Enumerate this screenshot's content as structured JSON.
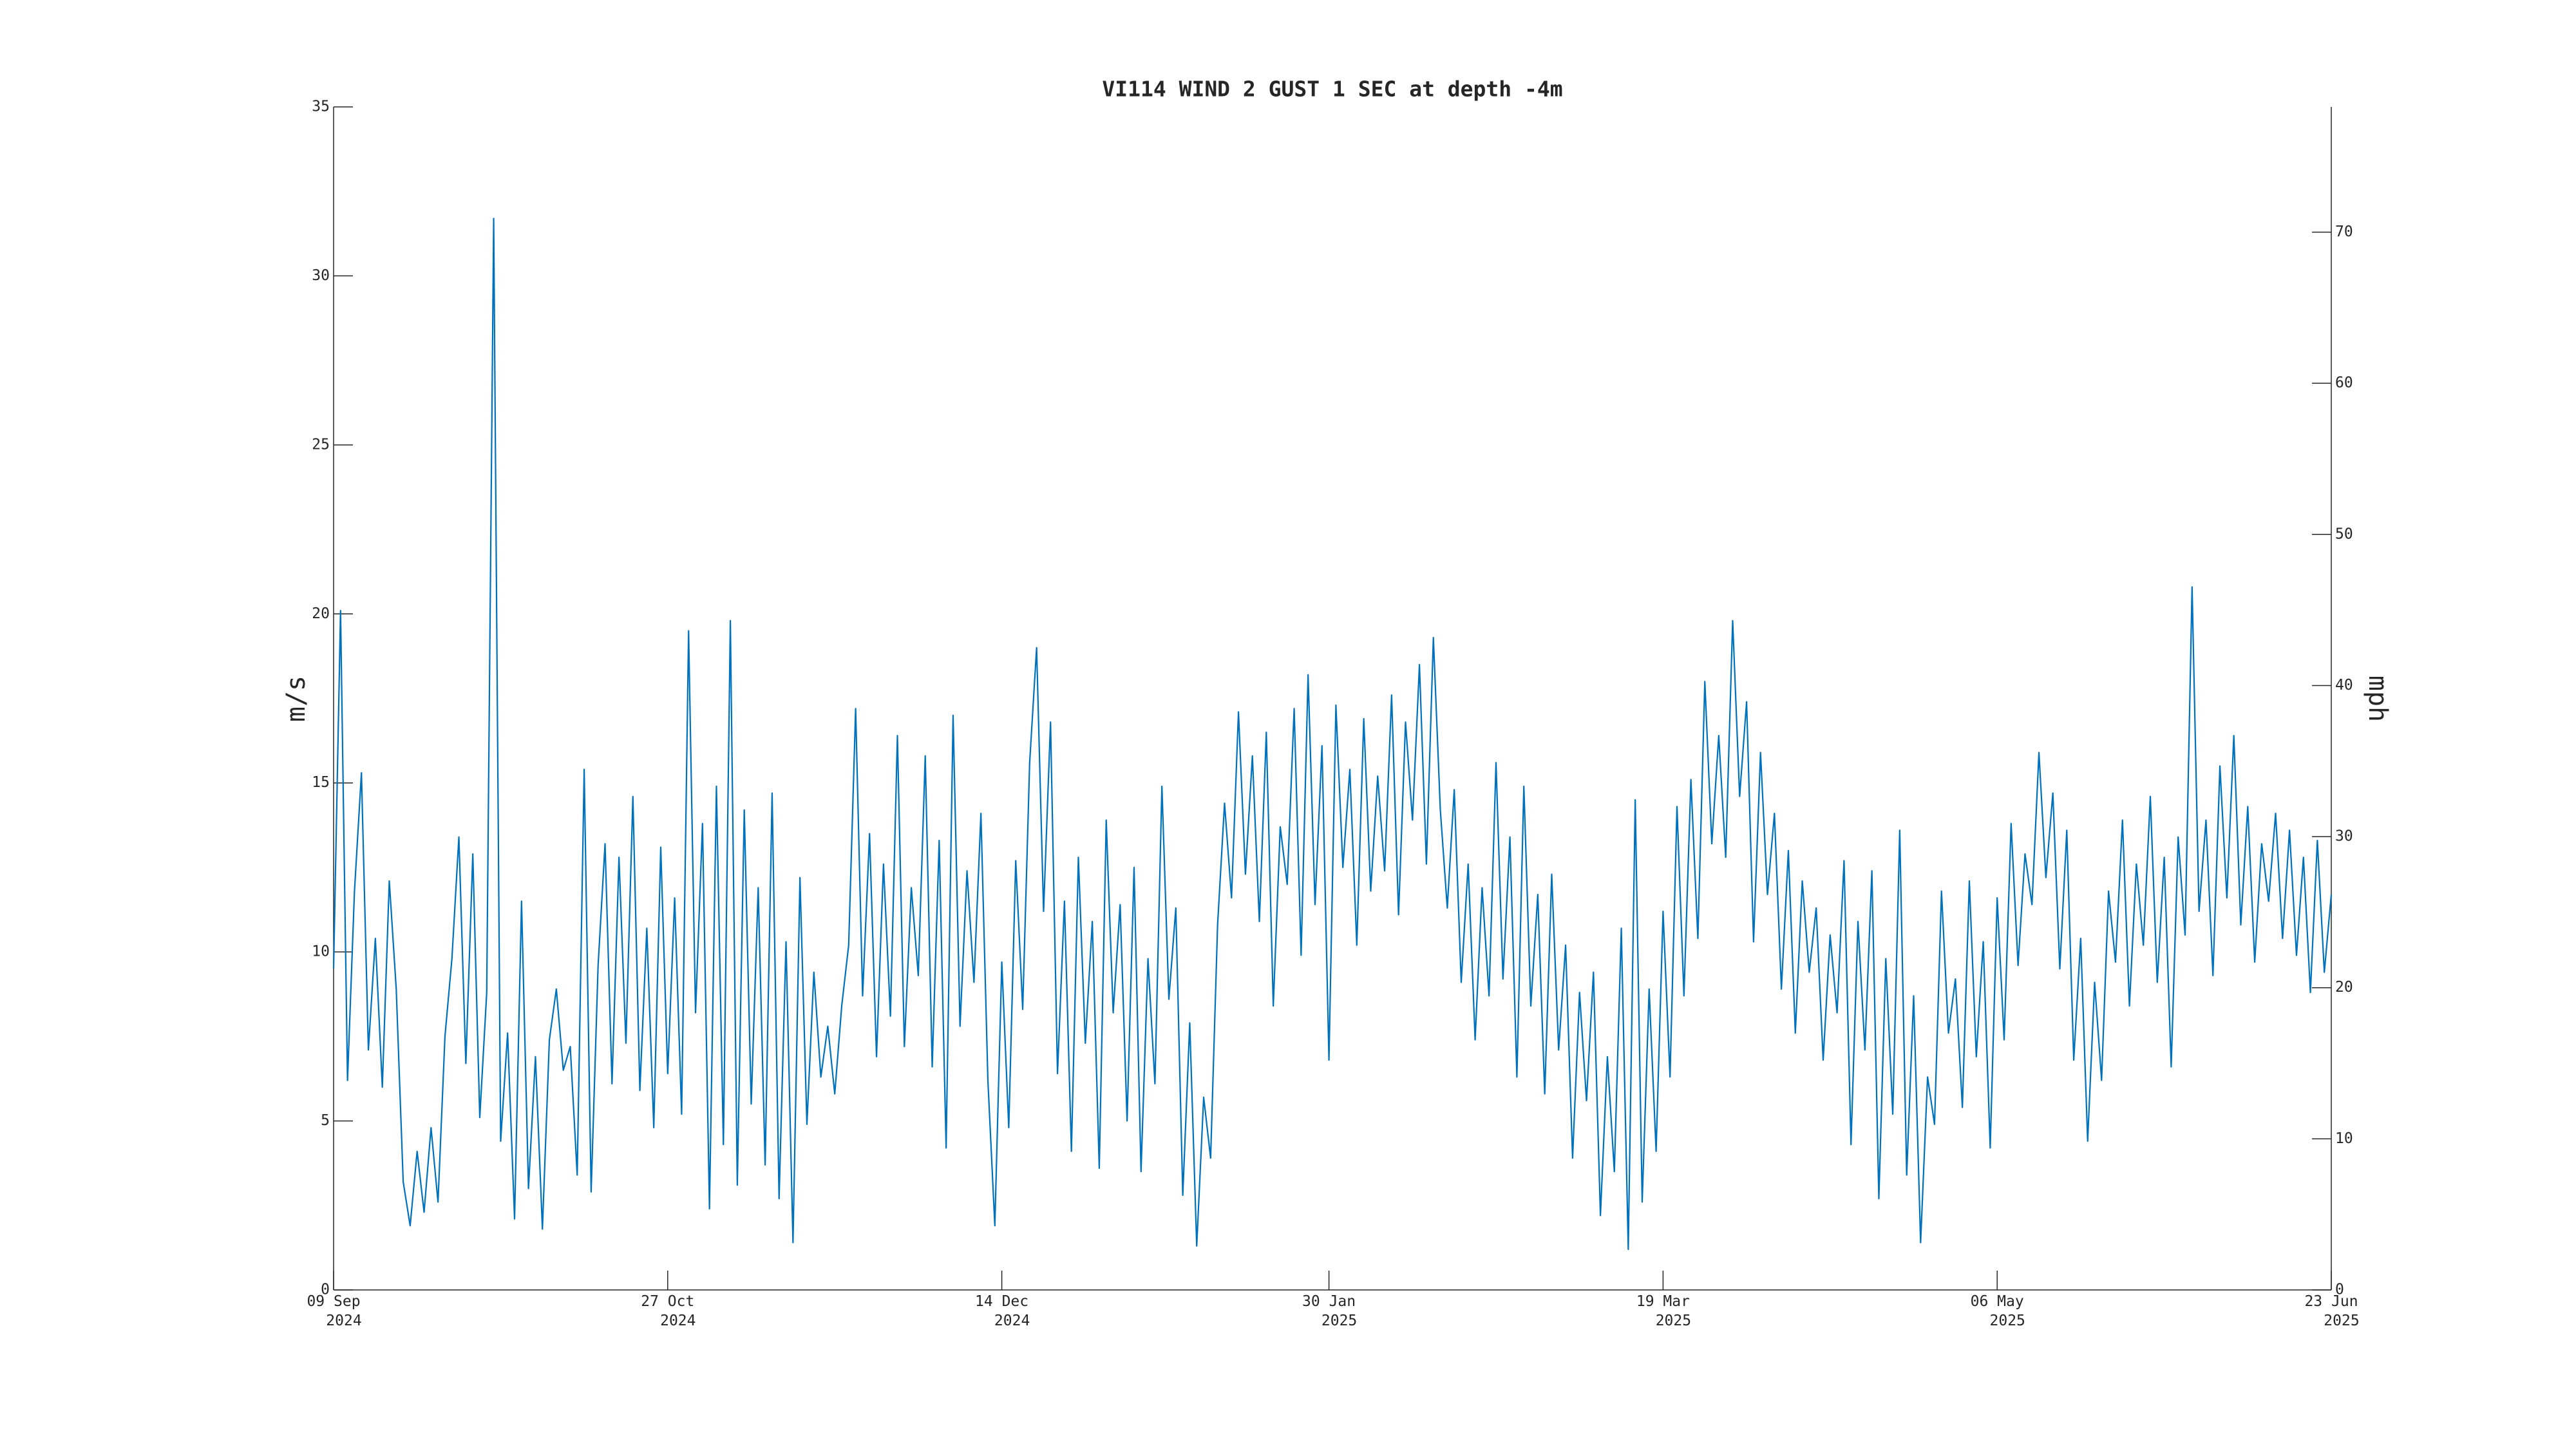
{
  "chart_data": {
    "type": "line",
    "title": "VI114 WIND 2 GUST 1 SEC at depth -4m",
    "y_label": "m/s",
    "y2_label": "mph",
    "xlim": [
      "2024-09-09",
      "2025-06-23"
    ],
    "xticks": [
      {
        "value": "2024-09-09",
        "label": "09 Sep 2024"
      },
      {
        "value": "2024-10-27",
        "label": "27 Oct 2024"
      },
      {
        "value": "2024-12-14",
        "label": "14 Dec 2024"
      },
      {
        "value": "2025-01-30",
        "label": "30 Jan 2025"
      },
      {
        "value": "2025-03-19",
        "label": "19 Mar 2025"
      },
      {
        "value": "2025-05-06",
        "label": "06 May 2025"
      },
      {
        "value": "2025-06-23",
        "label": "23 Jun 2025"
      }
    ],
    "ylim": [
      0,
      35
    ],
    "yticks": [
      0,
      5,
      10,
      15,
      20,
      25,
      30,
      35
    ],
    "y2lim": [
      0,
      78.29
    ],
    "y2ticks": [
      0,
      10,
      20,
      30,
      40,
      50,
      60,
      70
    ],
    "x": [
      "2024-09-09",
      "2024-09-10",
      "2024-09-11",
      "2024-09-12",
      "2024-09-13",
      "2024-09-14",
      "2024-09-15",
      "2024-09-16",
      "2024-09-17",
      "2024-09-18",
      "2024-09-19",
      "2024-09-20",
      "2024-09-21",
      "2024-09-22",
      "2024-09-23",
      "2024-09-24",
      "2024-09-25",
      "2024-09-26",
      "2024-09-27",
      "2024-09-28",
      "2024-09-29",
      "2024-09-30",
      "2024-10-01",
      "2024-10-02",
      "2024-10-03",
      "2024-10-04",
      "2024-10-05",
      "2024-10-06",
      "2024-10-07",
      "2024-10-08",
      "2024-10-09",
      "2024-10-10",
      "2024-10-11",
      "2024-10-12",
      "2024-10-13",
      "2024-10-14",
      "2024-10-15",
      "2024-10-16",
      "2024-10-17",
      "2024-10-18",
      "2024-10-19",
      "2024-10-20",
      "2024-10-21",
      "2024-10-22",
      "2024-10-23",
      "2024-10-24",
      "2024-10-25",
      "2024-10-26",
      "2024-10-27",
      "2024-10-28",
      "2024-10-29",
      "2024-10-30",
      "2024-10-31",
      "2024-11-01",
      "2024-11-02",
      "2024-11-03",
      "2024-11-04",
      "2024-11-05",
      "2024-11-06",
      "2024-11-07",
      "2024-11-08",
      "2024-11-09",
      "2024-11-10",
      "2024-11-11",
      "2024-11-12",
      "2024-11-13",
      "2024-11-14",
      "2024-11-15",
      "2024-11-16",
      "2024-11-17",
      "2024-11-18",
      "2024-11-19",
      "2024-11-20",
      "2024-11-21",
      "2024-11-22",
      "2024-11-23",
      "2024-11-24",
      "2024-11-25",
      "2024-11-26",
      "2024-11-27",
      "2024-11-28",
      "2024-11-29",
      "2024-11-30",
      "2024-12-01",
      "2024-12-02",
      "2024-12-03",
      "2024-12-04",
      "2024-12-05",
      "2024-12-06",
      "2024-12-07",
      "2024-12-08",
      "2024-12-09",
      "2024-12-10",
      "2024-12-11",
      "2024-12-12",
      "2024-12-13",
      "2024-12-14",
      "2024-12-15",
      "2024-12-16",
      "2024-12-17",
      "2024-12-18",
      "2024-12-19",
      "2024-12-20",
      "2024-12-21",
      "2024-12-22",
      "2024-12-23",
      "2024-12-24",
      "2024-12-25",
      "2024-12-26",
      "2024-12-27",
      "2024-12-28",
      "2024-12-29",
      "2024-12-30",
      "2024-12-31",
      "2025-01-01",
      "2025-01-02",
      "2025-01-03",
      "2025-01-04",
      "2025-01-05",
      "2025-01-06",
      "2025-01-07",
      "2025-01-08",
      "2025-01-09",
      "2025-01-10",
      "2025-01-11",
      "2025-01-12",
      "2025-01-13",
      "2025-01-14",
      "2025-01-15",
      "2025-01-16",
      "2025-01-17",
      "2025-01-18",
      "2025-01-19",
      "2025-01-20",
      "2025-01-21",
      "2025-01-22",
      "2025-01-23",
      "2025-01-24",
      "2025-01-25",
      "2025-01-26",
      "2025-01-27",
      "2025-01-28",
      "2025-01-29",
      "2025-01-30",
      "2025-01-31",
      "2025-02-01",
      "2025-02-02",
      "2025-02-03",
      "2025-02-04",
      "2025-02-05",
      "2025-02-06",
      "2025-02-07",
      "2025-02-08",
      "2025-02-09",
      "2025-02-10",
      "2025-02-11",
      "2025-02-12",
      "2025-02-13",
      "2025-02-14",
      "2025-02-15",
      "2025-02-16",
      "2025-02-17",
      "2025-02-18",
      "2025-02-19",
      "2025-02-20",
      "2025-02-21",
      "2025-02-22",
      "2025-02-23",
      "2025-02-24",
      "2025-02-25",
      "2025-02-26",
      "2025-02-27",
      "2025-02-28",
      "2025-03-01",
      "2025-03-02",
      "2025-03-03",
      "2025-03-04",
      "2025-03-05",
      "2025-03-06",
      "2025-03-07",
      "2025-03-08",
      "2025-03-09",
      "2025-03-10",
      "2025-03-11",
      "2025-03-12",
      "2025-03-13",
      "2025-03-14",
      "2025-03-15",
      "2025-03-16",
      "2025-03-17",
      "2025-03-18",
      "2025-03-19",
      "2025-03-20",
      "2025-03-21",
      "2025-03-22",
      "2025-03-23",
      "2025-03-24",
      "2025-03-25",
      "2025-03-26",
      "2025-03-27",
      "2025-03-28",
      "2025-03-29",
      "2025-03-30",
      "2025-03-31",
      "2025-04-01",
      "2025-04-02",
      "2025-04-03",
      "2025-04-04",
      "2025-04-05",
      "2025-04-06",
      "2025-04-07",
      "2025-04-08",
      "2025-04-09",
      "2025-04-10",
      "2025-04-11",
      "2025-04-12",
      "2025-04-13",
      "2025-04-14",
      "2025-04-15",
      "2025-04-16",
      "2025-04-17",
      "2025-04-18",
      "2025-04-19",
      "2025-04-20",
      "2025-04-21",
      "2025-04-22",
      "2025-04-23",
      "2025-04-24",
      "2025-04-25",
      "2025-04-26",
      "2025-04-27",
      "2025-04-28",
      "2025-04-29",
      "2025-04-30",
      "2025-05-01",
      "2025-05-02",
      "2025-05-03",
      "2025-05-04",
      "2025-05-05",
      "2025-05-06",
      "2025-05-07",
      "2025-05-08",
      "2025-05-09",
      "2025-05-10",
      "2025-05-11",
      "2025-05-12",
      "2025-05-13",
      "2025-05-14",
      "2025-05-15",
      "2025-05-16",
      "2025-05-17",
      "2025-05-18",
      "2025-05-19",
      "2025-05-20",
      "2025-05-21",
      "2025-05-22",
      "2025-05-23",
      "2025-05-24",
      "2025-05-25",
      "2025-05-26",
      "2025-05-27",
      "2025-05-28",
      "2025-05-29",
      "2025-05-30",
      "2025-05-31",
      "2025-06-01",
      "2025-06-02",
      "2025-06-03",
      "2025-06-04",
      "2025-06-05",
      "2025-06-06",
      "2025-06-07",
      "2025-06-08",
      "2025-06-09",
      "2025-06-10",
      "2025-06-11",
      "2025-06-12",
      "2025-06-13",
      "2025-06-14",
      "2025-06-15",
      "2025-06-16",
      "2025-06-17",
      "2025-06-18",
      "2025-06-19",
      "2025-06-20",
      "2025-06-21",
      "2025-06-22",
      "2025-06-23"
    ],
    "series": [
      {
        "color": "#0072bd",
        "values": [
          9.5,
          20.1,
          6.2,
          11.8,
          15.3,
          7.1,
          10.4,
          6.0,
          12.1,
          8.9,
          3.2,
          1.9,
          4.1,
          2.3,
          4.8,
          2.6,
          7.5,
          9.8,
          13.4,
          6.7,
          12.9,
          5.1,
          8.8,
          31.7,
          4.4,
          7.6,
          2.1,
          11.5,
          3.0,
          6.9,
          1.8,
          7.4,
          8.9,
          6.5,
          7.2,
          3.4,
          15.4,
          2.9,
          9.6,
          13.2,
          6.1,
          12.8,
          7.3,
          14.6,
          5.9,
          10.7,
          4.8,
          13.1,
          6.4,
          11.6,
          5.2,
          19.5,
          8.2,
          13.8,
          2.4,
          14.9,
          4.3,
          19.8,
          3.1,
          14.2,
          5.5,
          11.9,
          3.7,
          14.7,
          2.7,
          10.3,
          1.4,
          12.2,
          4.9,
          9.4,
          6.3,
          7.8,
          5.8,
          8.4,
          10.2,
          17.2,
          8.7,
          13.5,
          6.9,
          12.6,
          8.1,
          16.4,
          7.2,
          11.9,
          9.3,
          15.8,
          6.6,
          13.3,
          4.2,
          17.0,
          7.8,
          12.4,
          9.1,
          14.1,
          6.2,
          1.9,
          9.7,
          4.8,
          12.7,
          8.3,
          15.6,
          19.0,
          11.2,
          16.8,
          6.4,
          11.5,
          4.1,
          12.8,
          7.3,
          10.9,
          3.6,
          13.9,
          8.2,
          11.4,
          5.0,
          12.5,
          3.5,
          9.8,
          6.1,
          14.9,
          8.6,
          11.3,
          2.8,
          7.9,
          1.3,
          5.7,
          3.9,
          10.8,
          14.4,
          11.6,
          17.1,
          12.3,
          15.8,
          10.9,
          16.5,
          8.4,
          13.7,
          12.0,
          17.2,
          9.9,
          18.2,
          11.4,
          16.1,
          6.8,
          17.3,
          12.5,
          15.4,
          10.2,
          16.9,
          11.8,
          15.2,
          12.4,
          17.6,
          11.1,
          16.8,
          13.9,
          18.5,
          12.6,
          19.3,
          14.2,
          11.3,
          14.8,
          9.1,
          12.6,
          7.4,
          11.9,
          8.7,
          15.6,
          9.2,
          13.4,
          6.3,
          14.9,
          8.4,
          11.7,
          5.8,
          12.3,
          7.1,
          10.2,
          3.9,
          8.8,
          5.6,
          9.4,
          2.2,
          6.9,
          3.5,
          10.7,
          1.2,
          14.5,
          2.6,
          8.9,
          4.1,
          11.2,
          6.3,
          14.3,
          8.7,
          15.1,
          10.4,
          18.0,
          13.2,
          16.4,
          12.8,
          19.8,
          14.6,
          17.4,
          10.3,
          15.9,
          11.7,
          14.1,
          8.9,
          13.0,
          7.6,
          12.1,
          9.4,
          11.3,
          6.8,
          10.5,
          8.2,
          12.7,
          4.3,
          10.9,
          7.1,
          12.4,
          2.7,
          9.8,
          5.2,
          13.6,
          3.4,
          8.7,
          1.4,
          6.3,
          4.9,
          11.8,
          7.6,
          9.2,
          5.4,
          12.1,
          6.9,
          10.3,
          4.2,
          11.6,
          7.4,
          13.8,
          9.6,
          12.9,
          11.4,
          15.9,
          12.2,
          14.7,
          9.5,
          13.6,
          6.8,
          10.4,
          4.4,
          9.1,
          6.2,
          11.8,
          9.7,
          13.9,
          8.4,
          12.6,
          10.2,
          14.6,
          9.1,
          12.8,
          6.6,
          13.4,
          10.5,
          20.8,
          11.2,
          13.9,
          9.3,
          15.5,
          11.6,
          16.4,
          10.8,
          14.3,
          9.7,
          13.2,
          11.5,
          14.1,
          10.4,
          13.6,
          9.9,
          12.8,
          8.8,
          13.3,
          9.4,
          11.7
        ]
      }
    ]
  }
}
